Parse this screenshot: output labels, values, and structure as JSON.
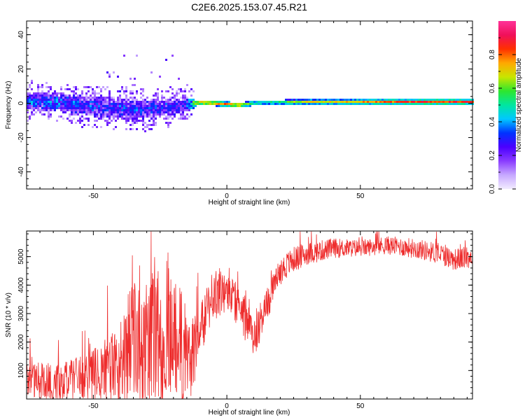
{
  "title": "C2E6.2025.153.07.45.R21",
  "chart_data": [
    {
      "type": "heatmap",
      "xlabel": "Height of straight line (km)",
      "ylabel": "Frequency (Hz)",
      "xlim": [
        -75,
        92
      ],
      "ylim": [
        -50,
        48
      ],
      "xticks": [
        -50,
        0,
        50
      ],
      "yticks": [
        -40,
        -20,
        0,
        20,
        40
      ],
      "grid": false,
      "colorbar": {
        "label": "Normalized spectral amplitude",
        "range": [
          0,
          1
        ],
        "ticks": [
          "0.0",
          "0.2",
          "0.4",
          "0.6",
          "0.8"
        ],
        "colors": [
          "#f2ecff",
          "#c7a8ff",
          "#8a3cff",
          "#4b00ff",
          "#0032ff",
          "#00c8ff",
          "#00e6a0",
          "#2ee62e",
          "#c8e600",
          "#ffa800",
          "#ff3000",
          "#f0105a",
          "#ff3399"
        ]
      },
      "ridge": {
        "x": [
          -75,
          -70,
          -65,
          -60,
          -55,
          -50,
          -45,
          -40,
          -35,
          -30,
          -25,
          -20,
          -15,
          -12,
          -10,
          -5,
          0,
          5,
          10,
          15,
          20,
          30,
          40,
          50,
          60,
          70,
          80,
          90
        ],
        "freq": [
          1,
          1.5,
          0.5,
          0,
          -1,
          -2,
          -2.5,
          -3,
          -4,
          -3.5,
          -3,
          -2,
          -1,
          0,
          0.5,
          0,
          -0.5,
          -1,
          0,
          0.5,
          0.5,
          0.8,
          0.8,
          0.8,
          0.8,
          0.8,
          0.8,
          0.8
        ],
        "spread_hz": [
          5,
          5,
          5,
          5,
          6,
          6,
          6,
          6,
          6,
          6,
          5,
          5,
          4,
          2,
          1.5,
          1.5,
          1.5,
          1.5,
          1.5,
          1.5,
          1.5,
          1.5,
          1.5,
          1.5,
          1.5,
          1.5,
          1.5,
          1.5
        ],
        "amplitude": [
          0.35,
          0.35,
          0.35,
          0.35,
          0.3,
          0.3,
          0.3,
          0.3,
          0.3,
          0.3,
          0.3,
          0.3,
          0.3,
          0.75,
          0.8,
          0.8,
          0.8,
          0.8,
          0.6,
          0.55,
          0.6,
          0.7,
          0.72,
          0.75,
          0.8,
          0.85,
          0.85,
          0.85
        ]
      }
    },
    {
      "type": "line",
      "xlabel": "Height of straight line (km)",
      "ylabel": "SNR (10 * v/v)",
      "xlim": [
        -75,
        92
      ],
      "ylim": [
        0,
        5900
      ],
      "xticks": [
        -50,
        0,
        50
      ],
      "yticks": [
        1000,
        2000,
        3000,
        4000,
        5000
      ],
      "grid": false,
      "series": [
        {
          "color": "#ee2c2c",
          "envelope": {
            "x": [
              -75,
              -65,
              -55,
              -45,
              -40,
              -35,
              -30,
              -25,
              -20,
              -15,
              -13,
              -10,
              -5,
              0,
              5,
              8,
              10,
              15,
              20,
              25,
              30,
              40,
              50,
              60,
              70,
              80,
              85,
              92
            ],
            "y": [
              700,
              600,
              700,
              900,
              1300,
              2000,
              1900,
              2200,
              2400,
              1400,
              1600,
              2400,
              3600,
              3800,
              3300,
              2500,
              2200,
              3300,
              4500,
              4900,
              5100,
              5300,
              5300,
              5400,
              5300,
              5100,
              4900,
              5000
            ]
          },
          "noise_amplitude": {
            "x": [
              -75,
              -60,
              -45,
              -35,
              -25,
              -15,
              -10,
              0,
              10,
              20,
              30,
              50,
              70,
              92
            ],
            "y": [
              600,
              700,
              1100,
              2200,
              2400,
              2000,
              900,
              800,
              800,
              500,
              400,
              300,
              350,
              400
            ]
          }
        }
      ]
    }
  ]
}
